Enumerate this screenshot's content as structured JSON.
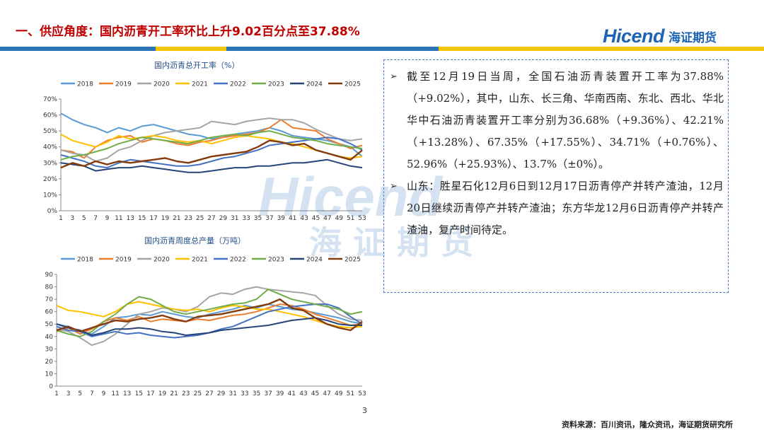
{
  "header": {
    "title": "一、供应角度：国内沥青开工率环比上升9.02百分点至37.88%",
    "logo_en": "Hicend",
    "logo_cn": "海证期货"
  },
  "stripe_colors": [
    "#2e75b6",
    "#f4c400",
    "#2e75b6",
    "#f4c400"
  ],
  "watermark": {
    "en": "Hicend",
    "cn": "海证期货"
  },
  "legend_years": [
    "2018",
    "2019",
    "2020",
    "2021",
    "2022",
    "2023",
    "2024",
    "2025"
  ],
  "series_colors": [
    "#5b9bd5",
    "#ed7d31",
    "#a5a5a5",
    "#ffc000",
    "#4472c4",
    "#70ad47",
    "#264478",
    "#843c0c"
  ],
  "chart_data": [
    {
      "type": "line",
      "title": "国内沥青总开工率（%）",
      "ylim": [
        0,
        70
      ],
      "yticks": [
        "0%",
        "10%",
        "20%",
        "30%",
        "40%",
        "50%",
        "60%",
        "70%"
      ],
      "x": [
        1,
        3,
        5,
        7,
        9,
        11,
        13,
        15,
        17,
        19,
        21,
        23,
        25,
        27,
        29,
        31,
        33,
        35,
        37,
        39,
        41,
        43,
        45,
        47,
        49,
        51,
        53
      ],
      "series": [
        {
          "name": "2018",
          "values": [
            61,
            57,
            54,
            52,
            49,
            52,
            50,
            53,
            54,
            52,
            50,
            48,
            47,
            45,
            46,
            48,
            49,
            50,
            52,
            50,
            47,
            46,
            45,
            44,
            42,
            40,
            34
          ]
        },
        {
          "name": "2019",
          "values": [
            38,
            37,
            33,
            40,
            44,
            46,
            47,
            43,
            45,
            44,
            42,
            41,
            43,
            44,
            46,
            47,
            48,
            49,
            52,
            57,
            52,
            51,
            50,
            45,
            42,
            39,
            41
          ]
        },
        {
          "name": "2020",
          "values": [
            38,
            36,
            35,
            31,
            33,
            38,
            40,
            44,
            47,
            49,
            50,
            51,
            52,
            56,
            55,
            54,
            56,
            57,
            58,
            57,
            57,
            55,
            51,
            48,
            45,
            44,
            45
          ]
        },
        {
          "name": "2021",
          "values": [
            48,
            44,
            42,
            40,
            43,
            47,
            45,
            46,
            47,
            46,
            44,
            43,
            44,
            42,
            44,
            46,
            47,
            46,
            45,
            43,
            42,
            40,
            38,
            36,
            34,
            33,
            34
          ]
        },
        {
          "name": "2022",
          "values": [
            35,
            33,
            31,
            28,
            27,
            30,
            32,
            31,
            30,
            29,
            28,
            28,
            29,
            31,
            33,
            34,
            36,
            38,
            41,
            42,
            43,
            44,
            45,
            46,
            45,
            42,
            38
          ]
        },
        {
          "name": "2023",
          "values": [
            32,
            34,
            35,
            37,
            39,
            42,
            44,
            46,
            45,
            44,
            43,
            42,
            44,
            46,
            47,
            48,
            47,
            49,
            50,
            48,
            46,
            45,
            44,
            42,
            41,
            40,
            39
          ]
        },
        {
          "name": "2024",
          "values": [
            30,
            29,
            28,
            25,
            26,
            27,
            27,
            28,
            27,
            26,
            25,
            24,
            24,
            25,
            26,
            27,
            27,
            28,
            28,
            29,
            30,
            30,
            31,
            32,
            30,
            28,
            27
          ]
        },
        {
          "name": "2025",
          "values": [
            27,
            30,
            28,
            31,
            29,
            31,
            30,
            31,
            32,
            33,
            31,
            30,
            32,
            34,
            35,
            36,
            37,
            40,
            44,
            43,
            41,
            42,
            38,
            36,
            34,
            32,
            37.88
          ]
        }
      ]
    },
    {
      "type": "line",
      "title": "国内沥青周度总产量（万吨）",
      "ylim": [
        0,
        90
      ],
      "yticks": [
        "0",
        "10",
        "20",
        "30",
        "40",
        "50",
        "60",
        "70",
        "80",
        "90"
      ],
      "x": [
        1,
        3,
        5,
        7,
        9,
        11,
        13,
        15,
        17,
        19,
        21,
        23,
        25,
        27,
        29,
        31,
        33,
        35,
        37,
        39,
        41,
        43,
        45,
        47,
        49,
        51,
        53
      ],
      "series": [
        {
          "name": "2018",
          "values": [
            50,
            48,
            44,
            42,
            48,
            55,
            56,
            58,
            57,
            60,
            58,
            56,
            55,
            58,
            60,
            62,
            65,
            63,
            66,
            64,
            62,
            61,
            59,
            57,
            55,
            52,
            50
          ]
        },
        {
          "name": "2019",
          "values": [
            44,
            47,
            42,
            46,
            52,
            55,
            53,
            56,
            52,
            54,
            53,
            52,
            54,
            53,
            55,
            57,
            58,
            60,
            63,
            66,
            65,
            62,
            58,
            55,
            52,
            49,
            50
          ]
        },
        {
          "name": "2020",
          "values": [
            46,
            44,
            39,
            33,
            36,
            42,
            50,
            58,
            60,
            63,
            62,
            60,
            64,
            72,
            75,
            74,
            78,
            80,
            78,
            77,
            76,
            75,
            73,
            65,
            58,
            54,
            53
          ]
        },
        {
          "name": "2021",
          "values": [
            65,
            61,
            60,
            58,
            56,
            60,
            66,
            68,
            66,
            64,
            62,
            61,
            62,
            60,
            63,
            65,
            64,
            62,
            62,
            60,
            58,
            56,
            53,
            50,
            48,
            47,
            48
          ]
        },
        {
          "name": "2022",
          "values": [
            48,
            45,
            44,
            40,
            42,
            44,
            42,
            43,
            41,
            40,
            39,
            40,
            41,
            43,
            46,
            48,
            52,
            56,
            60,
            62,
            64,
            65,
            66,
            66,
            63,
            56,
            50
          ]
        },
        {
          "name": "2023",
          "values": [
            45,
            42,
            40,
            44,
            52,
            58,
            66,
            72,
            70,
            65,
            60,
            58,
            60,
            62,
            64,
            66,
            67,
            70,
            78,
            74,
            70,
            68,
            66,
            64,
            62,
            58,
            60
          ]
        },
        {
          "name": "2024",
          "values": [
            50,
            47,
            45,
            41,
            43,
            46,
            46,
            47,
            46,
            44,
            43,
            41,
            42,
            43,
            45,
            46,
            47,
            48,
            49,
            51,
            53,
            54,
            55,
            53,
            50,
            49,
            49
          ]
        },
        {
          "name": "2025",
          "values": [
            45,
            48,
            44,
            47,
            50,
            53,
            52,
            54,
            55,
            57,
            54,
            52,
            56,
            57,
            58,
            60,
            62,
            64,
            66,
            70,
            63,
            61,
            55,
            50,
            47,
            45,
            52
          ]
        }
      ]
    }
  ],
  "bullets": [
    "截至12月19日当周，全国石油沥青装置开工率为37.88%（+9.02%），其中，山东、长三角、华南西南、东北、西北、华北华中石油沥青装置开工率分别为36.68%（+9.36%）、42.21%（+13.28%）、67.35%（+17.55%）、34.71%（+0.76%）、52.96%（+25.93%）、13.7%（±0%）。",
    "山东：胜星石化12月6日到12月17日沥青停产并转产渣油，12月20日继续沥青停产并转产渣油；东方华龙12月6日沥青停产并转产渣油，复产时间待定。"
  ],
  "bullet_symbol": "➢",
  "page_number": "3",
  "source": "资料来源：百川资讯，隆众资讯，海证期货研究所"
}
